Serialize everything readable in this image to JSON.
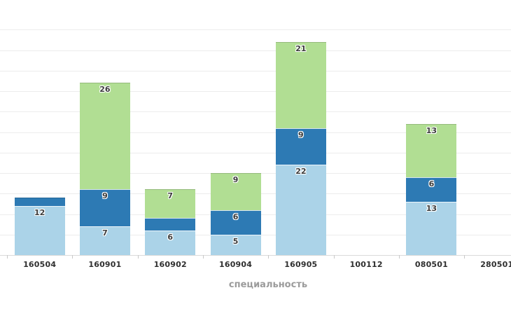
{
  "chart_data": {
    "type": "bar",
    "stacked": true,
    "title": "",
    "xlabel": "специальность",
    "ylabel": "",
    "categories": [
      "160504",
      "160901",
      "160902",
      "160904",
      "160905",
      "100112",
      "080501",
      "280501"
    ],
    "series": [
      {
        "name": "light-blue-bottom-series",
        "color": "#abd3e8",
        "values": [
          12,
          7,
          6,
          5,
          22,
          0,
          13,
          0
        ]
      },
      {
        "name": "dark-blue-middle-series",
        "color": "#2d7ab4",
        "values": [
          2,
          9,
          3,
          6,
          9,
          0,
          6,
          0
        ]
      },
      {
        "name": "green-top-series",
        "color": "#b1de93",
        "values": [
          0,
          26,
          7,
          9,
          21,
          0,
          13,
          0
        ]
      }
    ],
    "data_labels": {
      "min_value_to_show": 5,
      "color": "#3c3c3c"
    },
    "ylim": [
      0,
      60
    ],
    "grid_step": 5,
    "grid": "on",
    "legend": "none",
    "y_axis_tick_labels": "none"
  },
  "colors": {
    "background": "#ffffff",
    "gridline": "#ececec",
    "axis_line": "#dadada",
    "axis_tick": "#c9c9c9",
    "x_tick_label": "#2f2f2f",
    "axis_title": "#9b9b9b"
  }
}
